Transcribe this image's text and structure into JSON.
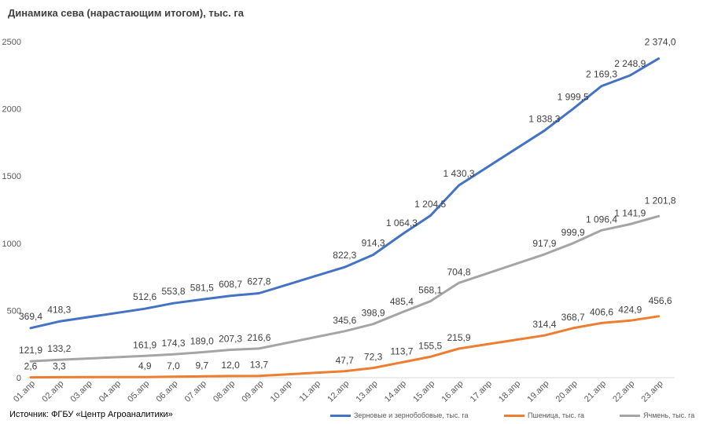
{
  "title": "Динамика сева (нарастающим итогом), тыс. га",
  "source": "Источник: ФГБУ «Центр Агроаналитики»",
  "chart_data": {
    "type": "line",
    "title": "Динамика сева (нарастающим итогом), тыс. га",
    "categories": [
      "01.апр",
      "02.апр",
      "03.апр",
      "04.апр",
      "05.апр",
      "06.апр",
      "07.апр",
      "08.апр",
      "09.апр",
      "10.апр",
      "11.апр",
      "12.апр",
      "13.апр",
      "14.апр",
      "15.апр",
      "16.апр",
      "17.апр",
      "18.апр",
      "19.апр",
      "20.апр",
      "21.апр",
      "22.апр",
      "23.апр"
    ],
    "ylim": [
      0,
      2500
    ],
    "yticks": [
      0,
      500,
      1000,
      1500,
      2000,
      2500
    ],
    "grid": false,
    "legend_position": "bottom",
    "series": [
      {
        "name": "Зерновые и зернобобовые, тыс. га",
        "color": "#4472C4",
        "points": [
          [
            0,
            369.4
          ],
          [
            1,
            418.3
          ],
          [
            4,
            512.6
          ],
          [
            5,
            553.8
          ],
          [
            6,
            581.5
          ],
          [
            7,
            608.7
          ],
          [
            8,
            627.8
          ],
          [
            11,
            822.3
          ],
          [
            12,
            914.3
          ],
          [
            13,
            1064.3
          ],
          [
            14,
            1204.5
          ],
          [
            15,
            1430.3
          ],
          [
            18,
            1838.3
          ],
          [
            19,
            1999.5
          ],
          [
            20,
            2169.3
          ],
          [
            21,
            2248.9
          ],
          [
            22,
            2374.0
          ]
        ],
        "labels": [
          "369,4",
          "418,3",
          "512,6",
          "553,8",
          "581,5",
          "608,7",
          "627,8",
          "822,3",
          "914,3",
          "1 064,3",
          "1 204,5",
          "1 430,3",
          "1 838,3",
          "1 999,5",
          "2 169,3",
          "2 248,9",
          "2 374,0"
        ]
      },
      {
        "name": "Пшеница, тыс. га",
        "color": "#ED7D31",
        "points": [
          [
            0,
            2.6
          ],
          [
            1,
            3.3
          ],
          [
            4,
            4.9
          ],
          [
            5,
            7.0
          ],
          [
            6,
            9.7
          ],
          [
            7,
            12.0
          ],
          [
            8,
            13.7
          ],
          [
            11,
            47.7
          ],
          [
            12,
            72.3
          ],
          [
            13,
            113.7
          ],
          [
            14,
            155.5
          ],
          [
            15,
            215.9
          ],
          [
            18,
            314.4
          ],
          [
            19,
            368.7
          ],
          [
            20,
            406.6
          ],
          [
            21,
            424.9
          ],
          [
            22,
            456.6
          ]
        ],
        "labels": [
          "2,6",
          "3,3",
          "4,9",
          "7,0",
          "9,7",
          "12,0",
          "13,7",
          "47,7",
          "72,3",
          "113,7",
          "155,5",
          "215,9",
          "314,4",
          "368,7",
          "406,6",
          "424,9",
          "456,6"
        ]
      },
      {
        "name": "Ячмень, тыс. га",
        "color": "#A5A5A5",
        "points": [
          [
            0,
            121.9
          ],
          [
            1,
            133.2
          ],
          [
            4,
            161.9
          ],
          [
            5,
            174.3
          ],
          [
            6,
            189.0
          ],
          [
            7,
            207.3
          ],
          [
            8,
            216.6
          ],
          [
            11,
            345.6
          ],
          [
            12,
            398.9
          ],
          [
            13,
            485.4
          ],
          [
            14,
            568.1
          ],
          [
            15,
            704.8
          ],
          [
            18,
            917.9
          ],
          [
            19,
            999.9
          ],
          [
            20,
            1096.4
          ],
          [
            21,
            1141.9
          ],
          [
            22,
            1201.8
          ]
        ],
        "labels": [
          "121,9",
          "133,2",
          "161,9",
          "174,3",
          "189,0",
          "207,3",
          "216,6",
          "345,6",
          "398,9",
          "485,4",
          "568,1",
          "704,8",
          "917,9",
          "999,9",
          "1 096,4",
          "1 141,9",
          "1 201,8"
        ]
      }
    ]
  }
}
